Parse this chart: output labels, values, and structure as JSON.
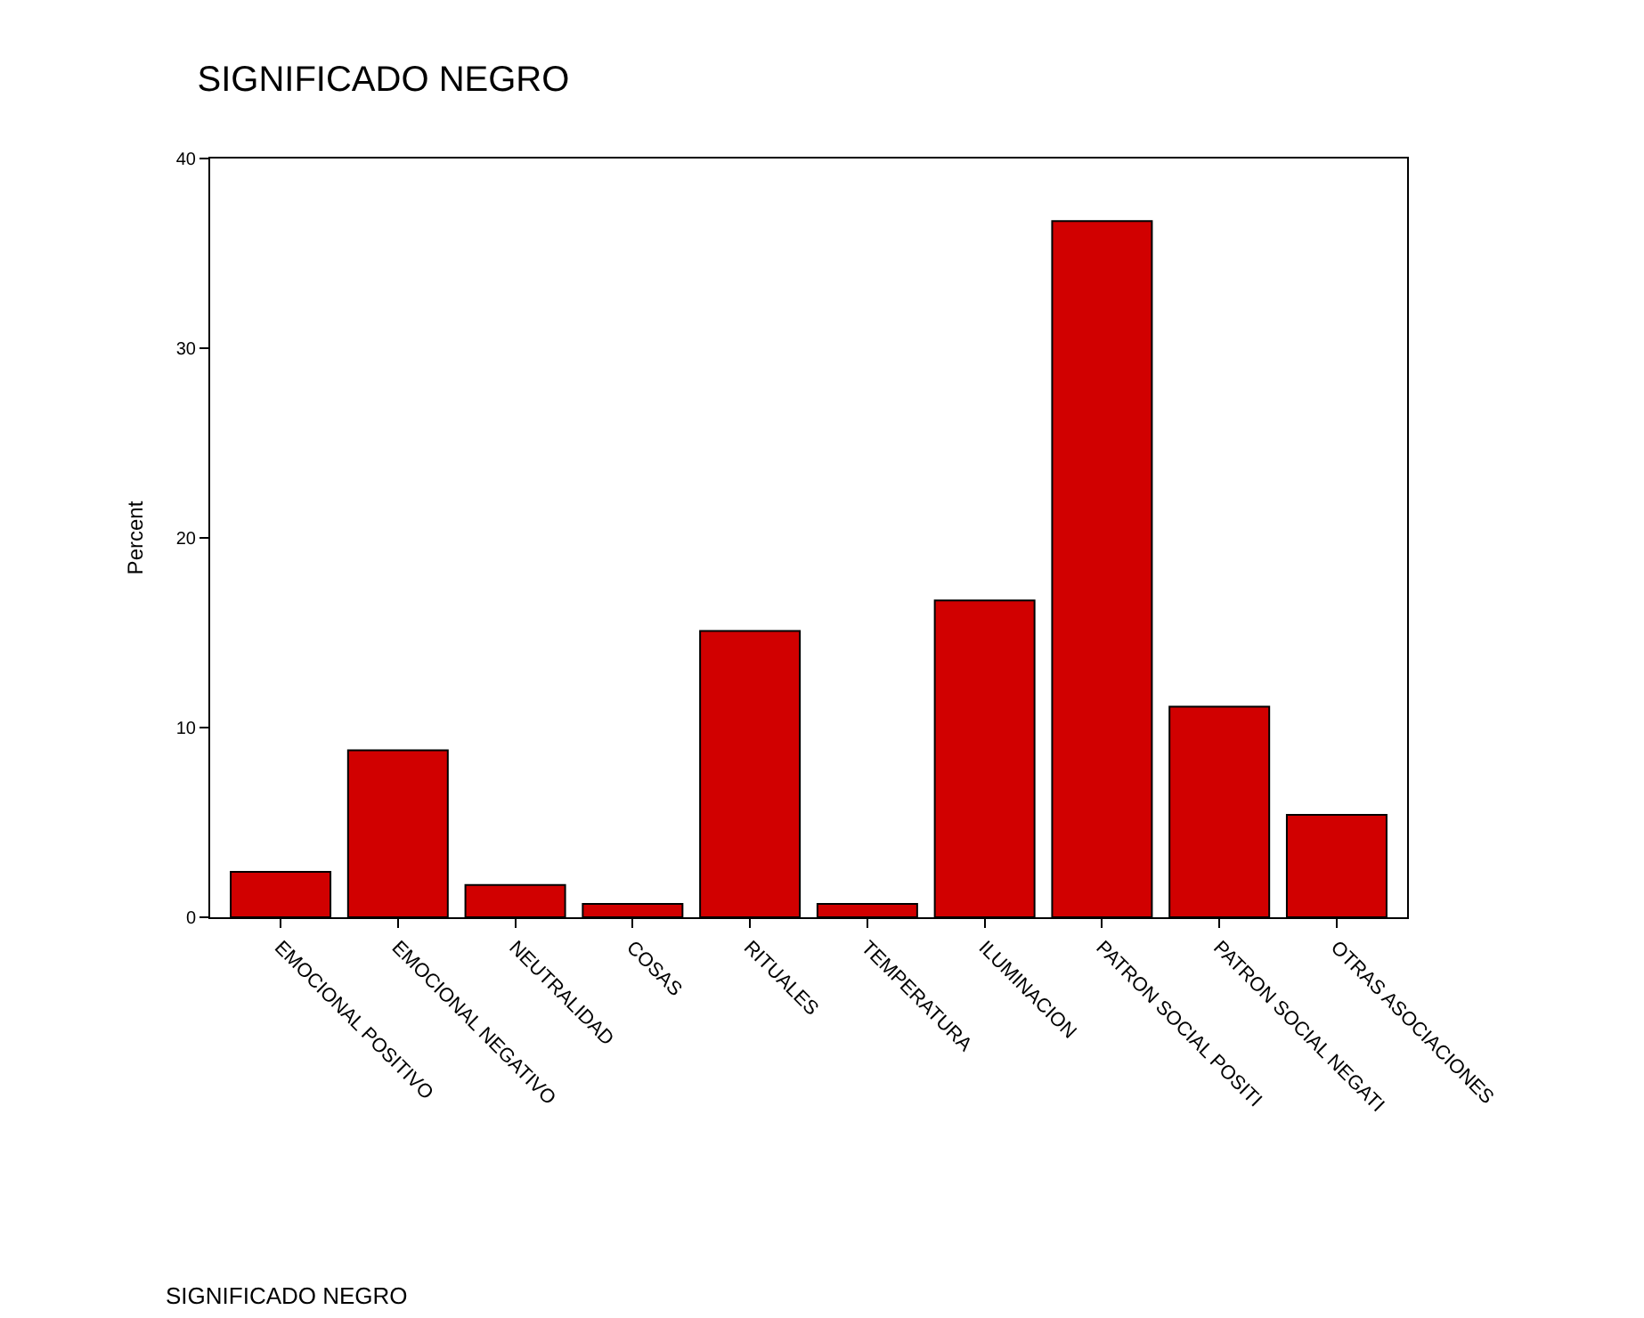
{
  "chart_data": {
    "type": "bar",
    "title": "SIGNIFICADO NEGRO",
    "annotations": [
      "SIGNIFICADO NEGRO"
    ],
    "ylabel": "Percent",
    "categories": [
      "EMOCIONAL POSITIVO",
      "EMOCIONAL NEGATIVO",
      "NEUTRALIDAD",
      "COSAS",
      "RITUALES",
      "TEMPERATURA",
      "ILUMINACION",
      "PATRON SOCIAL POSITI",
      "PATRON SOCIAL NEGATI",
      "OTRAS ASOCIACIONES"
    ],
    "values": [
      2.4,
      8.8,
      1.7,
      0.7,
      15.1,
      0.7,
      16.7,
      36.7,
      11.1,
      5.4
    ],
    "color": "#d10000",
    "ylim": [
      0,
      40
    ],
    "yticks": [
      0,
      10,
      20,
      30,
      40
    ]
  }
}
